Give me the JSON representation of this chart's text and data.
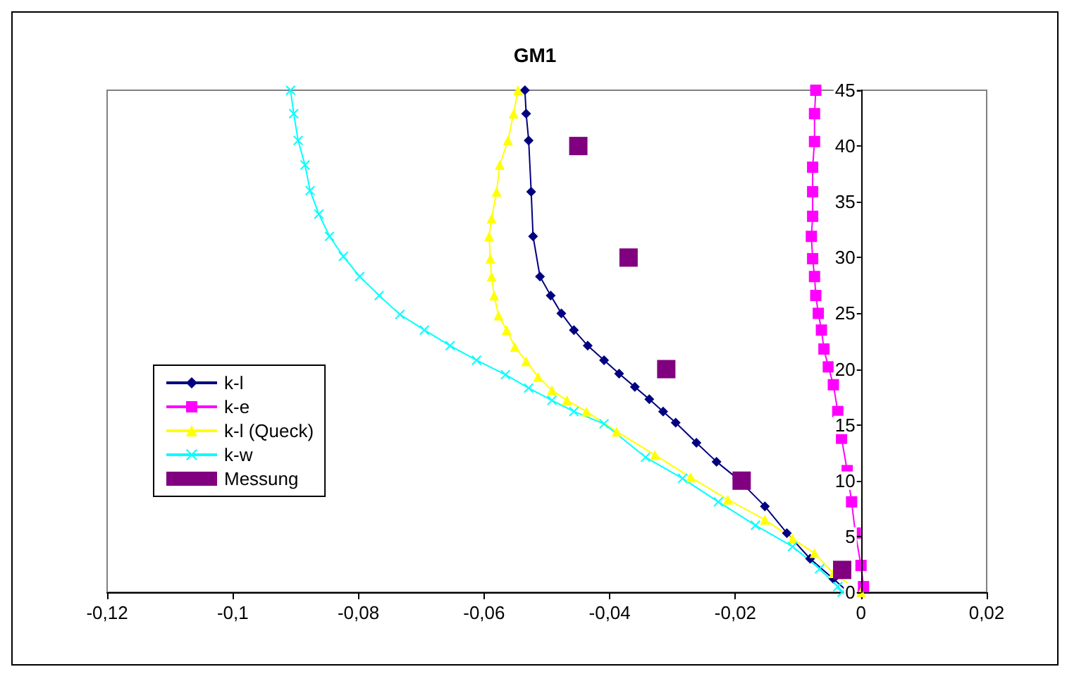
{
  "chart_data": {
    "type": "line",
    "title": "GM1",
    "xlim": [
      -0.12,
      0.02
    ],
    "xticks": [
      {
        "value": -0.12,
        "label": "-0,12"
      },
      {
        "value": -0.1,
        "label": "-0,1"
      },
      {
        "value": -0.08,
        "label": "-0,08"
      },
      {
        "value": -0.06,
        "label": "-0,06"
      },
      {
        "value": -0.04,
        "label": "-0,04"
      },
      {
        "value": -0.02,
        "label": "-0,02"
      },
      {
        "value": 0,
        "label": "0"
      },
      {
        "value": 0.02,
        "label": "0,02"
      }
    ],
    "ylim": [
      0,
      45
    ],
    "yticks": [
      0,
      5,
      10,
      15,
      20,
      25,
      30,
      35,
      40,
      45
    ],
    "legend": "left",
    "series": [
      {
        "name": "k-l",
        "color": "#000080",
        "marker": "diamond",
        "x": [
          -0.0535,
          -0.0533,
          -0.0529,
          -0.0525,
          -0.0522,
          -0.0511,
          -0.0494,
          -0.0477,
          -0.0457,
          -0.0435,
          -0.0409,
          -0.0385,
          -0.036,
          -0.0337,
          -0.0315,
          -0.0295,
          -0.0262,
          -0.023,
          -0.0197,
          -0.0153,
          -0.0118,
          -0.0081,
          -0.0044,
          -0.002
        ],
        "values": [
          45,
          42.9,
          40.5,
          35.9,
          31.9,
          28.3,
          26.6,
          25,
          23.5,
          22.1,
          20.8,
          19.6,
          18.4,
          17.3,
          16.2,
          15.2,
          13.4,
          11.7,
          10.2,
          7.7,
          5.3,
          3,
          1.2,
          0
        ]
      },
      {
        "name": "k-e",
        "color": "#ff00ff",
        "marker": "square",
        "x": [
          -0.0072,
          -0.0074,
          -0.0074,
          -0.0077,
          -0.0077,
          -0.0077,
          -0.0079,
          -0.0077,
          -0.0074,
          -0.0072,
          -0.0068,
          -0.0063,
          -0.0059,
          -0.0052,
          -0.0044,
          -0.0037,
          -0.0031,
          -0.0022,
          -0.0015,
          -0.0009,
          0,
          0.0004
        ],
        "values": [
          45,
          42.9,
          40.4,
          38.1,
          35.9,
          33.7,
          31.9,
          29.9,
          28.3,
          26.6,
          25,
          23.5,
          21.8,
          20.2,
          18.6,
          16.2,
          13.8,
          10.9,
          8.1,
          5.3,
          2.4,
          0.5
        ]
      },
      {
        "name": "k-l (Queck)",
        "color": "#ffff00",
        "marker": "triangle",
        "x": [
          -0.0546,
          -0.0553,
          -0.0562,
          -0.0575,
          -0.058,
          -0.0588,
          -0.0592,
          -0.059,
          -0.0588,
          -0.0584,
          -0.0577,
          -0.0564,
          -0.0551,
          -0.0533,
          -0.0514,
          -0.0492,
          -0.0468,
          -0.0437,
          -0.0389,
          -0.0328,
          -0.0271,
          -0.0212,
          -0.0153,
          -0.0109,
          -0.0074,
          -0.0044,
          0
        ],
        "values": [
          45,
          42.9,
          40.5,
          38.3,
          35.9,
          33.5,
          31.9,
          29.9,
          28.3,
          26.6,
          24.8,
          23.5,
          22,
          20.7,
          19.3,
          18.1,
          17.2,
          16.2,
          14.4,
          12.3,
          10.3,
          8.3,
          6.5,
          4.8,
          3.5,
          1.7,
          0
        ]
      },
      {
        "name": "k-w",
        "color": "#00ffff",
        "marker": "cross",
        "x": [
          -0.0908,
          -0.0903,
          -0.0896,
          -0.0885,
          -0.0877,
          -0.0863,
          -0.0846,
          -0.0824,
          -0.0798,
          -0.0767,
          -0.0734,
          -0.0695,
          -0.0654,
          -0.0612,
          -0.0566,
          -0.0529,
          -0.0492,
          -0.0457,
          -0.0409,
          -0.0343,
          -0.0284,
          -0.0227,
          -0.0168,
          -0.0109,
          -0.0066,
          -0.0037,
          -0.003
        ],
        "values": [
          45,
          42.9,
          40.5,
          38.3,
          36,
          33.9,
          31.9,
          30.1,
          28.3,
          26.6,
          24.9,
          23.5,
          22.1,
          20.8,
          19.5,
          18.3,
          17.2,
          16.2,
          15.1,
          12.1,
          10.2,
          8.1,
          6,
          4.1,
          2.1,
          0.5,
          0
        ]
      },
      {
        "name": "Messung",
        "type": "scatter",
        "color": "#800080",
        "marker": "square",
        "x": [
          -0.045,
          -0.037,
          -0.031,
          -0.019,
          -0.003
        ],
        "values": [
          40,
          30,
          20,
          10,
          2
        ]
      }
    ]
  }
}
